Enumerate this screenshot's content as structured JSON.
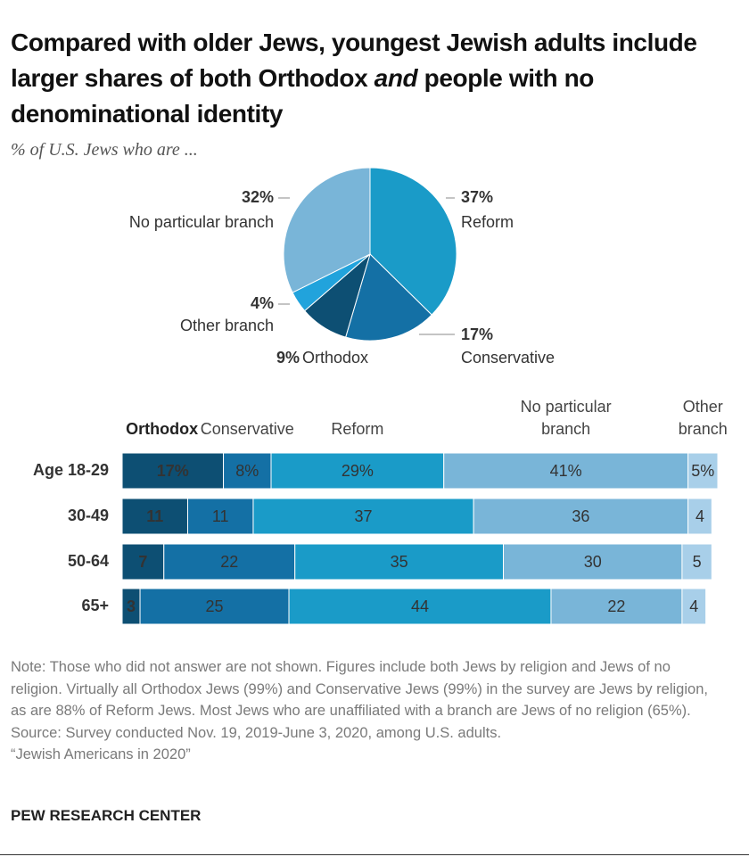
{
  "header": {
    "title_before": "Compared with older Jews, youngest Jewish adults include larger shares of both Orthodox ",
    "title_em": "and",
    "title_after": " people with no denominational identity",
    "subtitle": "% of U.S. Jews who are ..."
  },
  "chart_data": [
    {
      "type": "pie",
      "categories": [
        "Reform",
        "Conservative",
        "Orthodox",
        "Other branch",
        "No particular branch"
      ],
      "values": [
        37,
        17,
        9,
        4,
        32
      ],
      "value_labels": [
        "37%",
        "17%",
        "9%",
        "4%",
        "32%"
      ],
      "colors": [
        "#1a9bc8",
        "#1470a5",
        "#0d4f73",
        "#21a3dc",
        "#79b5d8"
      ]
    },
    {
      "type": "stacked-bar-horizontal",
      "categories": [
        "Age 18-29",
        "30-49",
        "50-64",
        "65+"
      ],
      "xlim": [
        0,
        100
      ],
      "series": [
        {
          "name": "Orthodox",
          "color": "#0d4f73",
          "values": [
            17,
            11,
            7,
            3
          ],
          "value_labels": [
            "17%",
            "11",
            "7",
            "3"
          ]
        },
        {
          "name": "Conservative",
          "color": "#1470a5",
          "values": [
            8,
            11,
            22,
            25
          ],
          "value_labels": [
            "8%",
            "11",
            "22",
            "25"
          ]
        },
        {
          "name": "Reform",
          "color": "#1a9bc8",
          "values": [
            29,
            37,
            35,
            44
          ],
          "value_labels": [
            "29%",
            "37",
            "35",
            "44"
          ]
        },
        {
          "name": "No particular branch",
          "color": "#79b5d8",
          "values": [
            41,
            36,
            30,
            22
          ],
          "value_labels": [
            "41%",
            "36",
            "30",
            "22"
          ]
        },
        {
          "name": "Other branch",
          "color": "#a8cfe9",
          "values": [
            5,
            4,
            5,
            4
          ],
          "value_labels": [
            "5%",
            "4",
            "5",
            "4"
          ]
        }
      ]
    }
  ],
  "notes": {
    "note": "Note: Those who did not answer are not shown. Figures include both Jews by religion and Jews of no religion. Virtually all Orthodox Jews (99%) and Conservative Jews (99%) in the survey are Jews by religion, as are 88% of Reform Jews. Most Jews who are unaffiliated with a branch are Jews of no religion (65%).",
    "source": "Source: Survey conducted Nov. 19, 2019-June 3, 2020, among U.S. adults.",
    "report": "“Jewish Americans in 2020”",
    "brand": "PEW RESEARCH CENTER"
  }
}
